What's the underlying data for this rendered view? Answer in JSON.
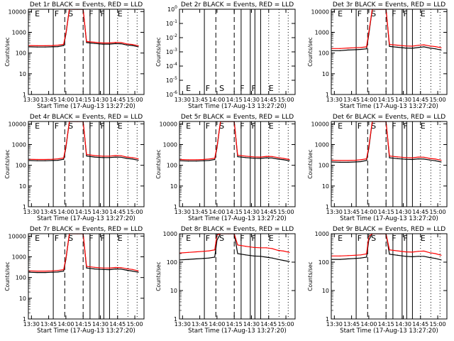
{
  "figure": {
    "background": "#ffffff",
    "axis_color": "#000000",
    "events_color": "#000000",
    "lld_color": "#ff0000"
  },
  "chart_data": [
    {
      "type": "line",
      "title": "Det 1r BLACK = Events, RED = LLD",
      "xlabel": "Start Time (17-Aug-13 13:27:20)",
      "ylabel": "Counts/sec",
      "x_ticks": [
        "13:30",
        "13:45",
        "14:00",
        "14:15",
        "14:30",
        "14:45",
        "15:00"
      ],
      "y_ticks": [
        "1",
        "10",
        "100",
        "1000",
        "10000"
      ],
      "yscale": "log",
      "ylim": [
        1,
        13000
      ],
      "grid": false,
      "x": [
        "13:28",
        "13:35",
        "13:42",
        "13:48",
        "13:53",
        "13:58",
        "14:00",
        "14:03",
        "14:10",
        "14:15",
        "14:18",
        "14:25",
        "14:32",
        "14:38",
        "14:43",
        "14:48",
        "14:53",
        "14:58",
        "15:03"
      ],
      "series": [
        {
          "name": "BLACK = Events",
          "values": [
            200,
            195,
            195,
            200,
            205,
            230,
            800,
            13000,
            13000,
            13000,
            320,
            290,
            270,
            270,
            285,
            280,
            245,
            230,
            200
          ]
        },
        {
          "name": "RED = LLD",
          "values": [
            230,
            225,
            225,
            230,
            240,
            265,
            900,
            13000,
            13000,
            13000,
            360,
            330,
            305,
            305,
            325,
            320,
            275,
            260,
            225
          ]
        }
      ],
      "dashed_lines": [
        "13:59",
        "14:15"
      ],
      "solid_lines": [
        "13:49",
        "14:21",
        "14:29",
        "14:33",
        "14:38"
      ],
      "dotted_lines": [
        "14:45",
        "14:54",
        "15:02"
      ],
      "annotations": [
        "E",
        "F",
        "S",
        "F",
        "F",
        "E"
      ]
    },
    {
      "type": "line",
      "title": "Det 2r BLACK = Events, RED = LLD",
      "xlabel": "Start Time (17-Aug-13 13:27:20)",
      "ylabel": "Counts/sec",
      "x_ticks": [
        "13:30",
        "13:45",
        "14:00",
        "14:15",
        "14:30",
        "14:45",
        "15:00"
      ],
      "y_ticks": [
        "10⁰",
        "10⁻¹",
        "10⁻²",
        "10⁻³",
        "10⁻⁴",
        "10⁻⁵",
        "10⁻⁶"
      ],
      "yscale": "log",
      "ylim": [
        1,
        1e-06
      ],
      "grid": false,
      "x": [],
      "series": [],
      "dashed_lines": [
        "13:59",
        "14:15"
      ],
      "solid_lines": [
        "13:49",
        "14:21",
        "14:29",
        "14:33",
        "14:38"
      ],
      "dotted_lines": [
        "14:45",
        "14:54",
        "15:02"
      ],
      "annotations": [
        "E",
        "F",
        "S",
        "F",
        "F",
        "E"
      ]
    },
    {
      "type": "line",
      "title": "Det 3r BLACK = Events, RED = LLD",
      "xlabel": "Start Time (17-Aug-13 13:27:20)",
      "ylabel": "Counts/sec",
      "x_ticks": [
        "13:30",
        "13:45",
        "14:00",
        "14:15",
        "14:30",
        "14:45",
        "15:00"
      ],
      "y_ticks": [
        "1",
        "10",
        "100",
        "1000",
        "10000"
      ],
      "yscale": "log",
      "ylim": [
        1,
        13000
      ],
      "grid": false,
      "x": [
        "13:28",
        "13:35",
        "13:42",
        "13:48",
        "13:53",
        "13:58",
        "14:00",
        "14:03",
        "14:10",
        "14:15",
        "14:18",
        "14:25",
        "14:32",
        "14:38",
        "14:43",
        "14:48",
        "14:53",
        "14:58",
        "15:03"
      ],
      "series": [
        {
          "name": "BLACK = Events",
          "values": [
            130,
            130,
            140,
            145,
            150,
            160,
            800,
            13000,
            13000,
            13000,
            210,
            190,
            175,
            170,
            185,
            200,
            175,
            160,
            140
          ]
        },
        {
          "name": "RED = LLD",
          "values": [
            165,
            165,
            175,
            180,
            185,
            200,
            1000,
            13000,
            13000,
            13000,
            260,
            240,
            220,
            215,
            235,
            250,
            220,
            205,
            180
          ]
        }
      ],
      "dashed_lines": [
        "13:59",
        "14:15"
      ],
      "solid_lines": [
        "13:49",
        "14:21",
        "14:29",
        "14:33",
        "14:38"
      ],
      "dotted_lines": [
        "14:45",
        "14:54",
        "15:02"
      ],
      "annotations": [
        "E",
        "F",
        "S",
        "F",
        "F",
        "E"
      ]
    },
    {
      "type": "line",
      "title": "Det 4r BLACK = Events, RED = LLD",
      "xlabel": "Start Time (17-Aug-13 13:27:20)",
      "ylabel": "Counts/sec",
      "x_ticks": [
        "13:30",
        "13:45",
        "14:00",
        "14:15",
        "14:30",
        "14:45",
        "15:00"
      ],
      "y_ticks": [
        "1",
        "10",
        "100",
        "1000",
        "10000"
      ],
      "yscale": "log",
      "ylim": [
        1,
        13000
      ],
      "grid": false,
      "x": [
        "13:28",
        "13:35",
        "13:42",
        "13:48",
        "13:53",
        "13:58",
        "14:00",
        "14:03",
        "14:10",
        "14:15",
        "14:18",
        "14:25",
        "14:32",
        "14:38",
        "14:43",
        "14:48",
        "14:53",
        "14:58",
        "15:03"
      ],
      "series": [
        {
          "name": "BLACK = Events",
          "values": [
            170,
            165,
            165,
            170,
            175,
            195,
            700,
            13000,
            13000,
            13000,
            280,
            250,
            235,
            235,
            250,
            245,
            215,
            200,
            175
          ]
        },
        {
          "name": "RED = LLD",
          "values": [
            195,
            190,
            190,
            195,
            205,
            225,
            800,
            13000,
            13000,
            13000,
            330,
            295,
            275,
            275,
            295,
            290,
            250,
            235,
            205
          ]
        }
      ],
      "dashed_lines": [
        "13:59",
        "14:15"
      ],
      "solid_lines": [
        "13:49",
        "14:21",
        "14:29",
        "14:33",
        "14:38"
      ],
      "dotted_lines": [
        "14:45",
        "14:54",
        "15:02"
      ],
      "annotations": [
        "E",
        "F",
        "S",
        "F",
        "F",
        "E"
      ]
    },
    {
      "type": "line",
      "title": "Det 5r BLACK = Events, RED = LLD",
      "xlabel": "Start Time (17-Aug-13 13:27:20)",
      "ylabel": "Counts/sec",
      "x_ticks": [
        "13:30",
        "13:45",
        "14:00",
        "14:15",
        "14:30",
        "14:45",
        "15:00"
      ],
      "y_ticks": [
        "1",
        "10",
        "100",
        "1000",
        "10000"
      ],
      "yscale": "log",
      "ylim": [
        1,
        13000
      ],
      "grid": false,
      "x": [
        "13:28",
        "13:35",
        "13:42",
        "13:48",
        "13:53",
        "13:58",
        "14:00",
        "14:03",
        "14:10",
        "14:15",
        "14:18",
        "14:25",
        "14:32",
        "14:38",
        "14:43",
        "14:48",
        "14:53",
        "14:58",
        "15:03"
      ],
      "series": [
        {
          "name": "BLACK = Events",
          "values": [
            165,
            160,
            160,
            165,
            170,
            190,
            700,
            13000,
            13000,
            13000,
            260,
            235,
            220,
            215,
            230,
            225,
            200,
            185,
            165
          ]
        },
        {
          "name": "RED = LLD",
          "values": [
            190,
            185,
            185,
            190,
            200,
            220,
            800,
            13000,
            13000,
            13000,
            305,
            275,
            255,
            250,
            270,
            265,
            235,
            215,
            190
          ]
        }
      ],
      "dashed_lines": [
        "13:59",
        "14:15"
      ],
      "solid_lines": [
        "13:49",
        "14:21",
        "14:29",
        "14:33",
        "14:38"
      ],
      "dotted_lines": [
        "14:45",
        "14:54",
        "15:02"
      ],
      "annotations": [
        "E",
        "F",
        "S",
        "F",
        "F",
        "E"
      ]
    },
    {
      "type": "line",
      "title": "Det 6r BLACK = Events, RED = LLD",
      "xlabel": "Start Time (17-Aug-13 13:27:20)",
      "ylabel": "Counts/sec",
      "x_ticks": [
        "13:30",
        "13:45",
        "14:00",
        "14:15",
        "14:30",
        "14:45",
        "15:00"
      ],
      "y_ticks": [
        "1",
        "10",
        "100",
        "1000",
        "10000"
      ],
      "yscale": "log",
      "ylim": [
        1,
        13000
      ],
      "grid": false,
      "x": [
        "13:28",
        "13:35",
        "13:42",
        "13:48",
        "13:53",
        "13:58",
        "14:00",
        "14:03",
        "14:10",
        "14:15",
        "14:18",
        "14:25",
        "14:32",
        "14:38",
        "14:43",
        "14:48",
        "14:53",
        "14:58",
        "15:03"
      ],
      "series": [
        {
          "name": "BLACK = Events",
          "values": [
            145,
            140,
            140,
            145,
            150,
            170,
            650,
            13000,
            13000,
            13000,
            230,
            210,
            195,
            190,
            205,
            200,
            180,
            165,
            145
          ]
        },
        {
          "name": "RED = LLD",
          "values": [
            175,
            170,
            170,
            175,
            185,
            205,
            800,
            13000,
            13000,
            13000,
            280,
            255,
            235,
            230,
            250,
            245,
            215,
            200,
            175
          ]
        }
      ],
      "dashed_lines": [
        "13:59",
        "14:15"
      ],
      "solid_lines": [
        "13:49",
        "14:21",
        "14:29",
        "14:33",
        "14:38"
      ],
      "dotted_lines": [
        "14:45",
        "14:54",
        "15:02"
      ],
      "annotations": [
        "E",
        "F",
        "S",
        "F",
        "F",
        "E"
      ]
    },
    {
      "type": "line",
      "title": "Det 7r BLACK = Events, RED = LLD",
      "xlabel": "Start Time (17-Aug-13 13:27:20)",
      "ylabel": "Counts/sec",
      "x_ticks": [
        "13:30",
        "13:45",
        "14:00",
        "14:15",
        "14:30",
        "14:45",
        "15:00"
      ],
      "y_ticks": [
        "1",
        "10",
        "100",
        "1000",
        "10000"
      ],
      "yscale": "log",
      "ylim": [
        1,
        13000
      ],
      "grid": false,
      "x": [
        "13:28",
        "13:35",
        "13:42",
        "13:48",
        "13:53",
        "13:58",
        "14:00",
        "14:03",
        "14:10",
        "14:15",
        "14:18",
        "14:25",
        "14:32",
        "14:38",
        "14:43",
        "14:48",
        "14:53",
        "14:58",
        "15:03"
      ],
      "series": [
        {
          "name": "BLACK = Events",
          "values": [
            180,
            175,
            175,
            180,
            185,
            205,
            750,
            13000,
            13000,
            13000,
            290,
            260,
            245,
            240,
            260,
            255,
            225,
            205,
            180
          ]
        },
        {
          "name": "RED = LLD",
          "values": [
            210,
            205,
            205,
            210,
            220,
            240,
            850,
            13000,
            13000,
            13000,
            345,
            310,
            290,
            285,
            305,
            300,
            265,
            245,
            210
          ]
        }
      ],
      "dashed_lines": [
        "13:59",
        "14:15"
      ],
      "solid_lines": [
        "13:49",
        "14:21",
        "14:29",
        "14:33",
        "14:38"
      ],
      "dotted_lines": [
        "14:45",
        "14:54",
        "15:02"
      ],
      "annotations": [
        "E",
        "F",
        "S",
        "F",
        "F",
        "E"
      ]
    },
    {
      "type": "line",
      "title": "Det 8r BLACK = Events, RED = LLD",
      "xlabel": "Start Time (17-Aug-13 13:27:20)",
      "ylabel": "Counts/sec",
      "x_ticks": [
        "13:30",
        "13:45",
        "14:00",
        "14:15",
        "14:30",
        "14:45",
        "15:00"
      ],
      "y_ticks": [
        "1",
        "10",
        "100",
        "1000"
      ],
      "yscale": "log",
      "ylim": [
        1,
        1000
      ],
      "grid": false,
      "x": [
        "13:28",
        "13:35",
        "13:42",
        "13:48",
        "13:53",
        "13:58",
        "14:00",
        "14:03",
        "14:10",
        "14:15",
        "14:18",
        "14:25",
        "14:32",
        "14:38",
        "14:43",
        "14:48",
        "14:53",
        "14:58",
        "15:03"
      ],
      "series": [
        {
          "name": "BLACK = Events",
          "values": [
            120,
            125,
            130,
            135,
            140,
            150,
            600,
            1000,
            1000,
            1000,
            200,
            180,
            165,
            160,
            150,
            140,
            125,
            115,
            105
          ]
        },
        {
          "name": "RED = LLD",
          "values": [
            210,
            220,
            230,
            240,
            250,
            270,
            900,
            1000,
            1000,
            1000,
            400,
            360,
            330,
            320,
            320,
            300,
            260,
            245,
            220
          ]
        }
      ],
      "dashed_lines": [
        "13:59",
        "14:15"
      ],
      "solid_lines": [
        "13:49",
        "14:21",
        "14:29",
        "14:33",
        "14:38"
      ],
      "dotted_lines": [
        "14:45",
        "14:54",
        "15:02"
      ],
      "annotations": [
        "E",
        "F",
        "S",
        "F",
        "F",
        "E"
      ]
    },
    {
      "type": "line",
      "title": "Det 9r BLACK = Events, RED = LLD",
      "xlabel": "Start Time (17-Aug-13 13:27:20)",
      "ylabel": "Counts/sec",
      "x_ticks": [
        "13:30",
        "13:45",
        "14:00",
        "14:15",
        "14:30",
        "14:45",
        "15:00"
      ],
      "y_ticks": [
        "1",
        "10",
        "100",
        "1000"
      ],
      "yscale": "log",
      "ylim": [
        1,
        1000
      ],
      "grid": false,
      "x": [
        "13:28",
        "13:35",
        "13:42",
        "13:48",
        "13:53",
        "13:58",
        "14:00",
        "14:03",
        "14:10",
        "14:15",
        "14:18",
        "14:25",
        "14:32",
        "14:38",
        "14:43",
        "14:48",
        "14:53",
        "14:58",
        "15:03"
      ],
      "series": [
        {
          "name": "BLACK = Events",
          "values": [
            125,
            125,
            130,
            135,
            140,
            150,
            600,
            1000,
            1000,
            1000,
            190,
            175,
            160,
            155,
            160,
            160,
            145,
            135,
            120
          ]
        },
        {
          "name": "RED = LLD",
          "values": [
            165,
            165,
            170,
            175,
            180,
            195,
            800,
            1000,
            1000,
            1000,
            270,
            250,
            230,
            225,
            240,
            245,
            215,
            200,
            175
          ]
        }
      ],
      "dashed_lines": [
        "13:59",
        "14:15"
      ],
      "solid_lines": [
        "13:49",
        "14:21",
        "14:29",
        "14:33",
        "14:38"
      ],
      "dotted_lines": [
        "14:45",
        "14:54",
        "15:02"
      ],
      "annotations": [
        "E",
        "F",
        "S",
        "F",
        "F",
        "E"
      ]
    }
  ]
}
